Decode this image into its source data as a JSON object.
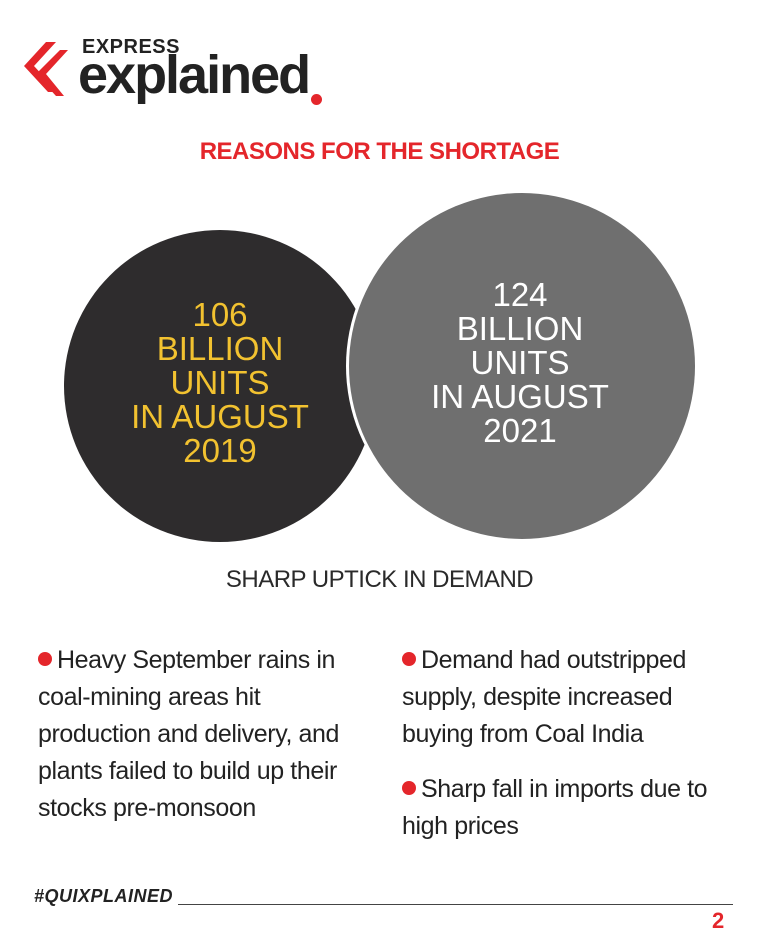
{
  "brand": {
    "top": "EXPRESS",
    "main": "explained",
    "accent_color": "#e4262b"
  },
  "headline": "REASONS FOR THE SHORTAGE",
  "venn": {
    "left": {
      "lines": [
        "106",
        "BILLION",
        "UNITS",
        "IN AUGUST",
        "2019"
      ],
      "fill": "#2e2c2d",
      "text_color": "#f2c230"
    },
    "right": {
      "lines": [
        "124",
        "BILLION",
        "UNITS",
        "IN AUGUST",
        "2021"
      ],
      "fill": "#6f6f6f",
      "text_color": "#ffffff"
    }
  },
  "subheading": "SHARP UPTICK IN DEMAND",
  "points_left": [
    "Heavy September rains in coal-mining areas hit production and delivery, and plants failed to build up their stocks pre-monsoon"
  ],
  "points_right": [
    "Demand had outstripped supply, despite increased buying from Coal India",
    "Sharp fall in imports due to high prices"
  ],
  "footer": {
    "hashtag": "#QUIXPLAINED",
    "page_number": "2"
  }
}
